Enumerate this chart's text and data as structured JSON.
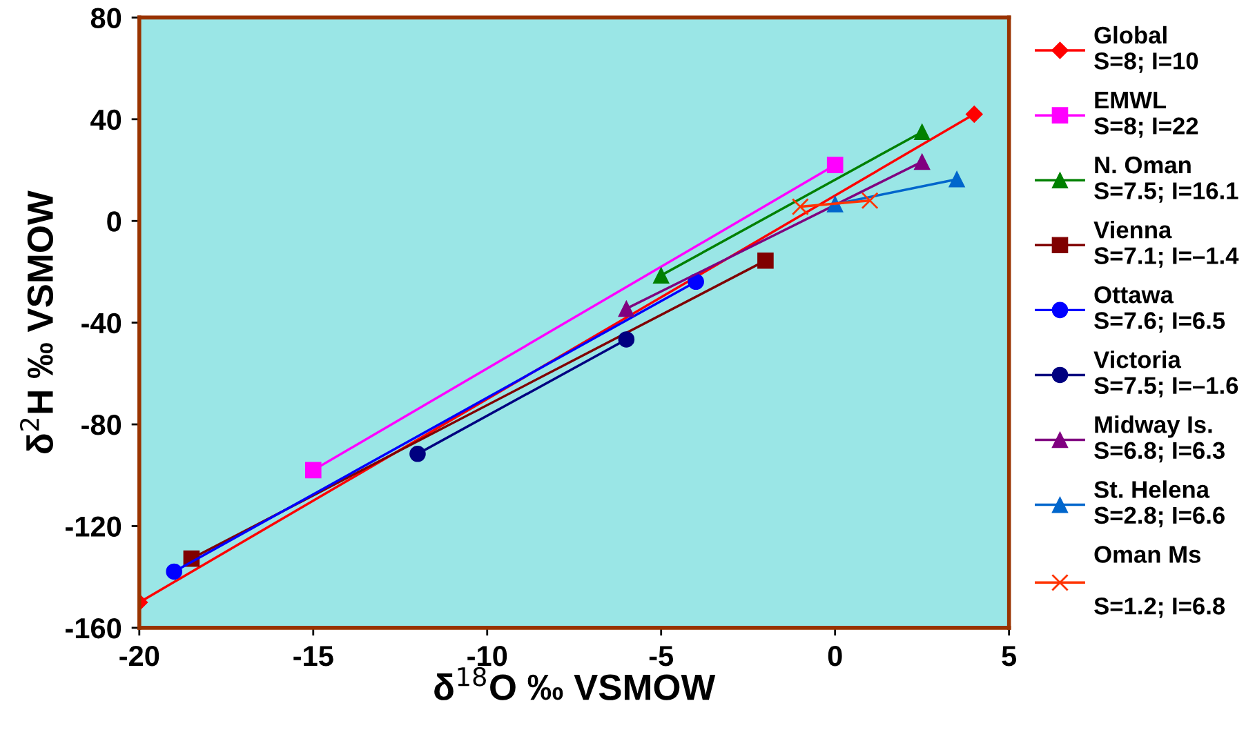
{
  "chart_data": {
    "type": "line",
    "xlabel": "δ$^{18}$O ‰ VSMOW",
    "ylabel": "δ$^{2}$H ‰ VSMOW",
    "xlim": [
      -20,
      5
    ],
    "ylim": [
      -160,
      80
    ],
    "xticks": [
      -20,
      -15,
      -10,
      -5,
      0,
      5
    ],
    "yticks": [
      -160,
      -120,
      -80,
      -40,
      0,
      40,
      80
    ],
    "grid": false,
    "legend": "right",
    "series": [
      {
        "name": "Global\nS=8; I=10",
        "color": "#ff0000",
        "marker": "diamond",
        "x": [
          -20,
          4
        ],
        "values": [
          -150,
          42
        ]
      },
      {
        "name": "EMWL\nS=8; I=22",
        "color": "#ff00ff",
        "marker": "square",
        "x": [
          -15,
          0
        ],
        "values": [
          -98,
          22
        ]
      },
      {
        "name": "N. Oman\nS=7.5; I=16.1",
        "color": "#008000",
        "marker": "triangle",
        "x": [
          -5,
          2.5
        ],
        "values": [
          -21.4,
          35
        ]
      },
      {
        "name": "Vienna\nS=7.1; I=–1.4",
        "color": "#800000",
        "marker": "square",
        "x": [
          -18.5,
          -2
        ],
        "values": [
          -132.8,
          -15.6
        ]
      },
      {
        "name": "Ottawa\nS=7.6; I=6.5",
        "color": "#0000ff",
        "marker": "circle",
        "x": [
          -19,
          -4
        ],
        "values": [
          -137.9,
          -23.9
        ]
      },
      {
        "name": "Victoria\nS=7.5; I=–1.6",
        "color": "#000080",
        "marker": "circle",
        "x": [
          -12,
          -6
        ],
        "values": [
          -91.6,
          -46.6
        ]
      },
      {
        "name": "Midway Is.\nS=6.8; I=6.3",
        "color": "#800080",
        "marker": "triangle",
        "x": [
          -6,
          2.5
        ],
        "values": [
          -34.5,
          23.3
        ]
      },
      {
        "name": "St. Helena\nS=2.8; I=6.6",
        "color": "#0066cc",
        "marker": "triangle",
        "x": [
          0,
          3.5
        ],
        "values": [
          6.6,
          16.4
        ]
      },
      {
        "name": "Oman Ms\n\nS=1.2; I=6.8",
        "color": "#ff3300",
        "marker": "cross",
        "x": [
          -1,
          1
        ],
        "values": [
          5.6,
          8
        ]
      }
    ]
  }
}
